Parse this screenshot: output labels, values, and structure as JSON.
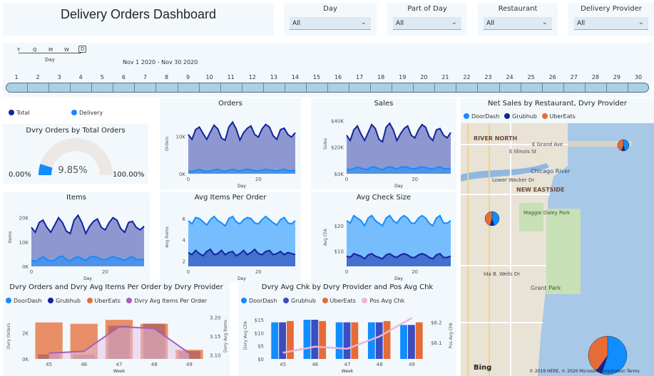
{
  "title": "Delivery Orders Dashboard",
  "slicers": [
    {
      "label": "Day",
      "value": "All"
    },
    {
      "label": "Part of Day",
      "value": "All"
    },
    {
      "label": "Restaurant",
      "value": "All"
    },
    {
      "label": "Delivery Provider",
      "value": "All"
    }
  ],
  "timeline": {
    "granularity": [
      "Y",
      "Q",
      "M",
      "W",
      "D"
    ],
    "granularity_caption": "Day",
    "range": "Nov 1 2020 - Nov 30 2020",
    "days": [
      "1",
      "2",
      "3",
      "4",
      "5",
      "6",
      "7",
      "8",
      "9",
      "10",
      "11",
      "12",
      "13",
      "14",
      "15",
      "16",
      "17",
      "18",
      "19",
      "20",
      "21",
      "22",
      "23",
      "24",
      "25",
      "26",
      "27",
      "28",
      "29",
      "30"
    ]
  },
  "colors": {
    "total": "#12239e",
    "delivery": "#118dff",
    "doordash": "#118dff",
    "grubhub": "#12239e",
    "ubereats": "#e66c37",
    "avg_items": "#a35fb8",
    "pos": "#ebb5d8",
    "panel": "#f2f8fc"
  },
  "legend_main": [
    "Total",
    "Delivery"
  ],
  "gauge": {
    "title": "Dvry Orders by Total Orders",
    "value": 9.85,
    "value_label": "9.85%",
    "min_label": "0.00%",
    "max_label": "100.00%"
  },
  "charts": {
    "orders": {
      "title": "Orders",
      "ylabel": "Orders",
      "xlabel": "Day",
      "yticks": [
        "10K",
        "0K"
      ]
    },
    "sales": {
      "title": "Sales",
      "ylabel": "Sales",
      "xlabel": "Day",
      "yticks": [
        "$40K",
        "$20K",
        "$0K"
      ]
    },
    "items": {
      "title": "Items",
      "ylabel": "Items",
      "xlabel": "Day",
      "yticks": [
        "20K",
        "10K",
        "0K"
      ]
    },
    "avg_items": {
      "title": "Avg Items Per Order",
      "ylabel": "Avg Items",
      "xlabel": "Day",
      "yticks": [
        "6",
        "4",
        "2"
      ]
    },
    "avg_check": {
      "title": "Avg Check Size",
      "ylabel": "Avg Chk",
      "xlabel": "Day",
      "yticks": [
        "$20",
        "$10"
      ]
    },
    "xticks": [
      "0",
      "20"
    ]
  },
  "combo1": {
    "title": "Dvry Orders and Dvry Avg Items Per Order by Dvry Provider",
    "legend": [
      "DoorDash",
      "Grubhub",
      "UberEats",
      "Dvry Avg Items Per Order"
    ],
    "ylabel_left": "Dvry Orders",
    "ylabel_right": "Dvry Avg Items",
    "xlabel": "Week",
    "yticks_left": [
      "2K",
      "0K"
    ],
    "yticks_right": [
      "3.20",
      "3.15",
      "3.10"
    ]
  },
  "combo2": {
    "title": "Dvry Avg Chk by Dvry Provider and Pos Avg Chk",
    "legend": [
      "DoorDash",
      "Grubhub",
      "UberEats",
      "Pos Avg Chk"
    ],
    "ylabel_left": "Dvry Avg Chk",
    "ylabel_right": "Pos Avg Chk",
    "xlabel": "Week",
    "yticks_left": [
      "$15",
      "$10",
      "$5",
      "$0"
    ],
    "yticks_right": [
      "$6.2",
      "$6.1"
    ]
  },
  "map": {
    "title": "Net Sales by Restaurant, Dvry Provider",
    "legend": [
      "DoorDash",
      "Grubhub",
      "UberEats"
    ],
    "labels": [
      "RIVER NORTH",
      "E Grand Ave",
      "E Illinois St",
      "Chicago River",
      "Lower Wacker Dr",
      "NEW EASTSIDE",
      "Maggie Daley Park",
      "Ida B. Wells Dr",
      "Grant Park"
    ],
    "logo": "Bing",
    "copyright": "© 2019 HERE, © 2020 Microsoft Corporation Terms"
  },
  "chart_data": [
    {
      "type": "line",
      "title": "Orders",
      "xlabel": "Day",
      "ylabel": "Orders",
      "x": [
        1,
        2,
        3,
        4,
        5,
        6,
        7,
        8,
        9,
        10,
        11,
        12,
        13,
        14,
        15,
        16,
        17,
        18,
        19,
        20,
        21,
        22,
        23,
        24,
        25,
        26,
        27,
        28,
        29,
        30
      ],
      "series": [
        {
          "name": "Total",
          "values": [
            10500,
            9200,
            11800,
            12500,
            10800,
            9200,
            11200,
            13000,
            12000,
            9500,
            9000,
            12500,
            13800,
            12000,
            9000,
            11000,
            12200,
            12800,
            10500,
            9800,
            12000,
            13200,
            12500,
            10200,
            9200,
            11800,
            12200,
            10500,
            9800,
            11000
          ]
        },
        {
          "name": "Delivery",
          "values": [
            700,
            600,
            900,
            1200,
            800,
            600,
            700,
            1100,
            1200,
            800,
            600,
            1000,
            1200,
            900,
            700,
            1100,
            1200,
            1100,
            800,
            800,
            1000,
            1200,
            1000,
            900,
            700,
            1000,
            1200,
            800,
            800,
            900
          ]
        }
      ],
      "ylim": [
        0,
        16000
      ]
    },
    {
      "type": "line",
      "title": "Sales",
      "xlabel": "Day",
      "ylabel": "Sales",
      "x": [
        1,
        2,
        3,
        4,
        5,
        6,
        7,
        8,
        9,
        10,
        11,
        12,
        13,
        14,
        15,
        16,
        17,
        18,
        19,
        20,
        21,
        22,
        23,
        24,
        25,
        26,
        27,
        28,
        29,
        30
      ],
      "series": [
        {
          "name": "Total",
          "values": [
            29000,
            25000,
            33000,
            36000,
            30000,
            25000,
            31000,
            37000,
            34000,
            26000,
            24000,
            35000,
            38000,
            33000,
            25000,
            30000,
            34000,
            36000,
            29000,
            27000,
            33000,
            37000,
            35000,
            28000,
            25000,
            33000,
            34000,
            29000,
            27000,
            31000
          ]
        },
        {
          "name": "Delivery",
          "values": [
            3500,
            3000,
            4000,
            5000,
            4200,
            3200,
            3500,
            5200,
            5000,
            3800,
            3000,
            4500,
            5200,
            4500,
            3300,
            4800,
            5300,
            5000,
            3800,
            3700,
            4600,
            5200,
            4700,
            4000,
            3300,
            4600,
            5200,
            3800,
            3700,
            4200
          ]
        }
      ],
      "ylim": [
        0,
        45000
      ]
    },
    {
      "type": "line",
      "title": "Items",
      "xlabel": "Day",
      "ylabel": "Items",
      "x": [
        1,
        2,
        3,
        4,
        5,
        6,
        7,
        8,
        9,
        10,
        11,
        12,
        13,
        14,
        15,
        16,
        17,
        18,
        19,
        20,
        21,
        22,
        23,
        24,
        25,
        26,
        27,
        28,
        29,
        30
      ],
      "series": [
        {
          "name": "Total",
          "values": [
            16000,
            14000,
            18000,
            19000,
            16000,
            14000,
            17000,
            20000,
            18000,
            14500,
            13500,
            19000,
            21000,
            18000,
            13500,
            16500,
            18500,
            19500,
            16000,
            15000,
            18000,
            20000,
            19000,
            15500,
            14000,
            18000,
            18500,
            16000,
            15000,
            16500
          ]
        },
        {
          "name": "Delivery",
          "values": [
            2500,
            2000,
            3000,
            4000,
            2800,
            2200,
            2500,
            3800,
            4200,
            2800,
            2200,
            3400,
            4000,
            3200,
            2400,
            3800,
            4100,
            3700,
            2800,
            2700,
            3400,
            4000,
            3500,
            3000,
            2400,
            3500,
            4000,
            2800,
            2700,
            3000
          ]
        }
      ],
      "ylim": [
        0,
        24000
      ]
    },
    {
      "type": "area",
      "title": "Avg Items Per Order",
      "xlabel": "Day",
      "ylabel": "Avg Items",
      "x": [
        1,
        2,
        3,
        4,
        5,
        6,
        7,
        8,
        9,
        10,
        11,
        12,
        13,
        14,
        15,
        16,
        17,
        18,
        19,
        20,
        21,
        22,
        23,
        24,
        25,
        26,
        27,
        28,
        29,
        30
      ],
      "series": [
        {
          "name": "Delivery",
          "values": [
            5.8,
            5.5,
            6.1,
            6.0,
            5.7,
            5.4,
            5.9,
            6.2,
            5.8,
            5.6,
            5.3,
            6.0,
            6.2,
            5.7,
            5.5,
            5.9,
            6.1,
            6.0,
            5.6,
            5.5,
            5.9,
            6.2,
            5.9,
            5.6,
            5.4,
            5.9,
            6.1,
            5.6,
            5.5,
            5.8
          ]
        },
        {
          "name": "Total",
          "values": [
            2.8,
            2.6,
            3.0,
            2.7,
            2.5,
            2.9,
            3.1,
            2.6,
            2.7,
            3.0,
            2.6,
            2.8,
            2.9,
            2.5,
            2.7,
            3.0,
            2.6,
            2.8,
            3.1,
            2.7,
            2.6,
            2.9,
            3.0,
            2.6,
            2.7,
            2.9,
            2.6,
            2.8,
            2.7,
            2.6
          ]
        }
      ],
      "ylim": [
        1.5,
        7
      ]
    },
    {
      "type": "area",
      "title": "Avg Check Size",
      "xlabel": "Day",
      "ylabel": "Avg Chk",
      "x": [
        1,
        2,
        3,
        4,
        5,
        6,
        7,
        8,
        9,
        10,
        11,
        12,
        13,
        14,
        15,
        16,
        17,
        18,
        19,
        20,
        21,
        22,
        23,
        24,
        25,
        26,
        27,
        28,
        29,
        30
      ],
      "series": [
        {
          "name": "Delivery",
          "values": [
            22,
            21,
            24,
            23,
            22,
            20,
            23,
            24,
            22,
            21,
            20,
            23,
            24,
            22,
            21,
            23,
            24,
            23,
            21,
            21,
            23,
            24,
            23,
            21,
            20,
            23,
            24,
            21,
            21,
            22
          ]
        },
        {
          "name": "Total",
          "values": [
            8,
            7.5,
            9,
            8.5,
            8,
            7,
            8.5,
            9,
            8,
            7.5,
            7,
            8.5,
            9,
            8,
            7.5,
            8.5,
            9,
            8.5,
            7.5,
            7.5,
            8.5,
            9,
            8.5,
            7.5,
            7,
            8.5,
            9,
            7.5,
            7.5,
            8
          ]
        }
      ],
      "ylim": [
        4,
        27
      ]
    },
    {
      "type": "bar",
      "title": "Dvry Orders and Dvry Avg Items Per Order by Dvry Provider",
      "categories": [
        "45",
        "46",
        "47",
        "48",
        "49"
      ],
      "series": [
        {
          "name": "UberEats",
          "values": [
            2800,
            2700,
            3000,
            2700,
            700
          ]
        },
        {
          "name": "Grubhub",
          "values": [
            150,
            150,
            2200,
            2400,
            500
          ]
        },
        {
          "name": "DoorDash",
          "values": [
            200,
            150,
            350,
            300,
            100
          ]
        },
        {
          "name": "Dvry Avg Items Per Order",
          "values": [
            3.105,
            3.11,
            3.175,
            3.17,
            3.105
          ]
        }
      ],
      "ylim": [
        0,
        3500
      ],
      "ylim_right": [
        3.09,
        3.21
      ]
    },
    {
      "type": "bar",
      "title": "Dvry Avg Chk by Dvry Provider and Pos Avg Chk",
      "categories": [
        "45",
        "46",
        "47",
        "48",
        "49"
      ],
      "series": [
        {
          "name": "DoorDash",
          "values": [
            14,
            15,
            14,
            14,
            13
          ]
        },
        {
          "name": "Grubhub",
          "values": [
            14,
            15,
            14,
            14,
            13
          ]
        },
        {
          "name": "UberEats",
          "values": [
            14.5,
            14.5,
            14,
            14.5,
            14
          ]
        },
        {
          "name": "Pos Avg Chk",
          "values": [
            6.05,
            6.08,
            6.07,
            6.13,
            6.22
          ]
        }
      ],
      "ylim": [
        0,
        18
      ],
      "ylim_right": [
        6.02,
        6.25
      ]
    }
  ]
}
